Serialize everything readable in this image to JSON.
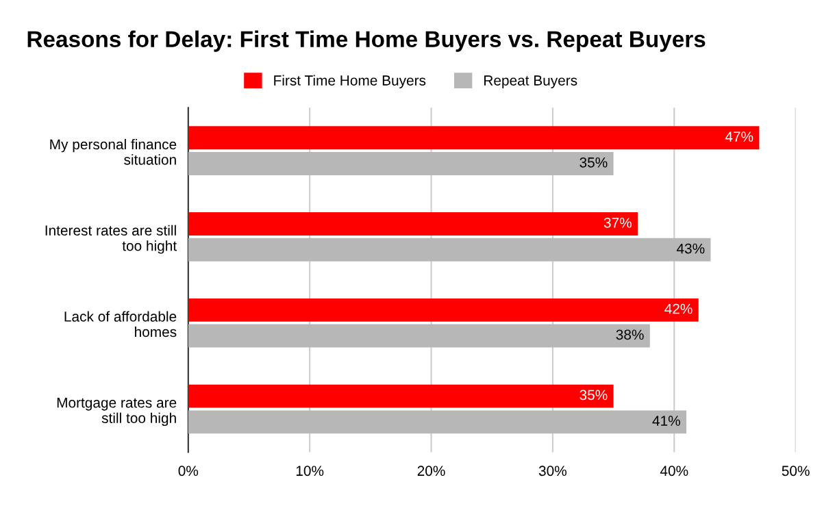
{
  "chart_data": {
    "type": "bar",
    "orientation": "horizontal",
    "title": "Reasons for Delay: First Time Home Buyers vs. Repeat Buyers",
    "categories": [
      "My personal finance\nsituation",
      "Interest rates are still\ntoo hight",
      "Lack of affordable\nhomes",
      "Mortgage rates are\nstill too high"
    ],
    "series": [
      {
        "name": "First Time Home Buyers",
        "color": "#ff0000",
        "values": [
          47,
          37,
          42,
          35
        ],
        "value_labels": [
          "47%",
          "37%",
          "42%",
          "35%"
        ]
      },
      {
        "name": "Repeat Buyers",
        "color": "#b7b7b7",
        "values": [
          35,
          43,
          38,
          41
        ],
        "value_labels": [
          "35%",
          "43%",
          "38%",
          "41%"
        ]
      }
    ],
    "xlim": [
      0,
      50
    ],
    "xticks": [
      {
        "value": 0,
        "label": "0%"
      },
      {
        "value": 10,
        "label": "10%"
      },
      {
        "value": 20,
        "label": "20%"
      },
      {
        "value": 30,
        "label": "30%"
      },
      {
        "value": 40,
        "label": "40%"
      },
      {
        "value": 50,
        "label": "50%"
      }
    ],
    "grid": "x",
    "legend": "top"
  }
}
